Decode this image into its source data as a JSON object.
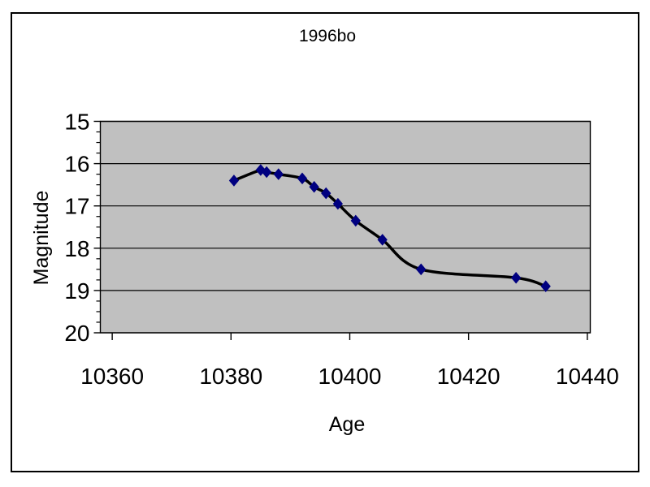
{
  "chart_data": {
    "type": "scatter",
    "line_style": "smooth",
    "title": "1996bo",
    "xlabel": "Age",
    "ylabel": "Magnitude",
    "x_ticks": [
      10360,
      10380,
      10400,
      10420,
      10440
    ],
    "y_ticks": [
      15,
      16,
      17,
      18,
      19,
      20
    ],
    "xlim": [
      10358,
      10440.5
    ],
    "ylim": [
      15,
      20
    ],
    "y_axis_inverted": true,
    "y_minor_tick_step": 0.25,
    "grid": "horizontal-major",
    "legend": "none",
    "plot_area_bg": "#c0c0c0",
    "axis_color": "#000000",
    "marker_color": "#000080",
    "marker_shape": "diamond",
    "line_color": "#000000",
    "series": [
      {
        "name": "1996bo",
        "x": [
          10380.5,
          10385,
          10386,
          10388,
          10392,
          10394,
          10396,
          10398,
          10401,
          10405.5,
          10412,
          10428,
          10433
        ],
        "y": [
          16.4,
          16.15,
          16.2,
          16.25,
          16.35,
          16.55,
          16.7,
          16.95,
          17.35,
          17.8,
          18.5,
          18.7,
          18.9
        ]
      }
    ]
  }
}
